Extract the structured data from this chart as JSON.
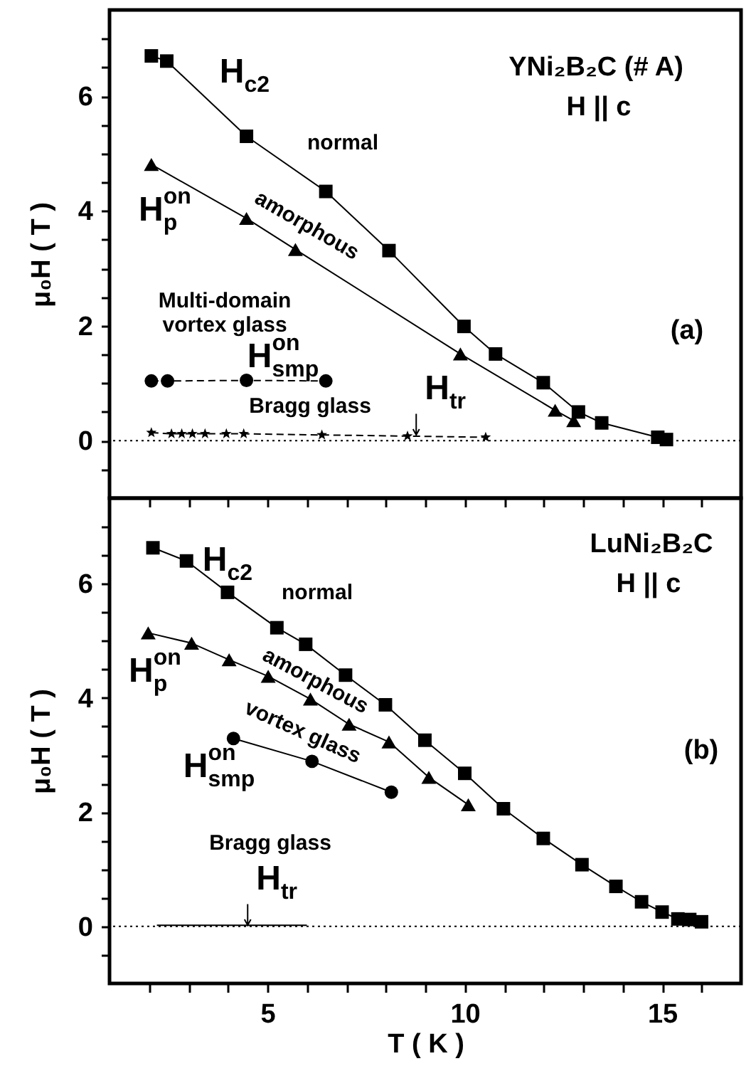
{
  "chart_data": [
    {
      "type": "line",
      "xlim": [
        1,
        17
      ],
      "ylim": [
        -1,
        7.5
      ],
      "xticks": [
        {
          "value": 2,
          "label": null
        },
        {
          "value": 3,
          "label": null
        },
        {
          "value": 4,
          "label": null
        },
        5,
        {
          "value": 6,
          "label": null
        },
        {
          "value": 7,
          "label": null
        },
        {
          "value": 8,
          "label": null
        },
        {
          "value": 9,
          "label": null
        },
        10,
        {
          "value": 11,
          "label": null
        },
        {
          "value": 12,
          "label": null
        },
        {
          "value": 13,
          "label": null
        },
        {
          "value": 14,
          "label": null
        },
        15,
        {
          "value": 16,
          "label": null
        }
      ],
      "yticks": [
        {
          "value": -0.5,
          "label": null
        },
        0,
        {
          "value": 0.5,
          "label": null
        },
        {
          "value": 1,
          "label": null
        },
        {
          "value": 1.5,
          "label": null
        },
        2,
        {
          "value": 2.5,
          "label": null
        },
        {
          "value": 3,
          "label": null
        },
        {
          "value": 3.5,
          "label": null
        },
        4,
        {
          "value": 4.5,
          "label": null
        },
        {
          "value": 5,
          "label": null
        },
        {
          "value": 5.5,
          "label": null
        },
        6,
        {
          "value": 6.5,
          "label": null
        },
        {
          "value": 7,
          "label": null
        }
      ],
      "ylabel": "μ₀H ( T )",
      "tick_labels": "y",
      "series": [
        {
          "color": "#000000",
          "marker": "square",
          "line_style": "solid",
          "x": [
            2.06,
            2.45,
            4.47,
            6.48,
            8.08,
            9.98,
            10.78,
            11.99,
            12.88,
            13.47,
            14.89,
            15.11
          ],
          "values": [
            6.7,
            6.61,
            5.3,
            4.34,
            3.31,
            1.99,
            1.51,
            1.01,
            0.5,
            0.31,
            0.06,
            0.02
          ]
        },
        {
          "color": "#000000",
          "marker": "triangle",
          "line_style": "solid",
          "x": [
            2.06,
            4.47,
            5.71,
            9.89,
            12.29,
            12.76
          ],
          "values": [
            4.81,
            3.87,
            3.33,
            1.51,
            0.53,
            0.35
          ]
        },
        {
          "color": "#000000",
          "marker": "circle",
          "line_style": "dashed",
          "x": [
            2.06,
            2.47,
            4.47,
            6.48
          ],
          "values": [
            1.04,
            1.04,
            1.05,
            1.04
          ]
        },
        {
          "color": "#000000",
          "marker": "star",
          "line_style": "dashed",
          "x": [
            2.06,
            2.57,
            2.83,
            3.1,
            3.42,
            3.96,
            4.4,
            6.38,
            8.55,
            10.53
          ],
          "values": [
            0.14,
            0.12,
            0.12,
            0.12,
            0.12,
            0.12,
            0.12,
            0.1,
            0.08,
            0.06
          ]
        }
      ],
      "ref_lines": [
        {
          "axis": "y",
          "value": 0,
          "line_style": "dotted",
          "color": "#000000"
        }
      ],
      "annotations": [
        "H$_{c2}$",
        "normal",
        "H$^{on}$$_{p}$",
        "amorphous",
        "Multi-domain\nvortex glass",
        "H$^{on}$$_{smp}$",
        "Bragg glass",
        {
          "text": "H$_{tr}$",
          "x": 8.77,
          "y": 0.1
        },
        "YNi₂B₂C (# A)",
        "H || c",
        "(a)"
      ]
    },
    {
      "type": "line",
      "xlim": [
        1,
        17
      ],
      "ylim": [
        -1,
        7.5
      ],
      "xticks": [
        {
          "value": 2,
          "label": null
        },
        {
          "value": 3,
          "label": null
        },
        {
          "value": 4,
          "label": null
        },
        5,
        {
          "value": 6,
          "label": null
        },
        {
          "value": 7,
          "label": null
        },
        {
          "value": 8,
          "label": null
        },
        {
          "value": 9,
          "label": null
        },
        10,
        {
          "value": 11,
          "label": null
        },
        {
          "value": 12,
          "label": null
        },
        {
          "value": 13,
          "label": null
        },
        {
          "value": 14,
          "label": null
        },
        15,
        {
          "value": 16,
          "label": null
        }
      ],
      "yticks": [
        {
          "value": -0.5,
          "label": null
        },
        0,
        {
          "value": 0.5,
          "label": null
        },
        {
          "value": 1,
          "label": null
        },
        {
          "value": 1.5,
          "label": null
        },
        2,
        {
          "value": 2.5,
          "label": null
        },
        {
          "value": 3,
          "label": null
        },
        {
          "value": 3.5,
          "label": null
        },
        4,
        {
          "value": 4.5,
          "label": null
        },
        {
          "value": 5,
          "label": null
        },
        {
          "value": 5.5,
          "label": null
        },
        6,
        {
          "value": 6.5,
          "label": null
        },
        {
          "value": 7,
          "label": null
        }
      ],
      "xlabel": "T ( K )",
      "ylabel": "μ₀H ( T )",
      "series": [
        {
          "color": "#000000",
          "marker": "square",
          "line_style": "solid",
          "x": [
            2.1,
            2.95,
            3.99,
            5.24,
            5.97,
            6.98,
            7.99,
            8.99,
            10.0,
            10.98,
            11.99,
            12.97,
            13.83,
            14.48,
            15.0,
            15.4,
            15.7,
            16.0
          ],
          "values": [
            6.63,
            6.4,
            5.85,
            5.23,
            4.94,
            4.4,
            3.88,
            3.26,
            2.68,
            2.06,
            1.54,
            1.08,
            0.7,
            0.43,
            0.25,
            0.13,
            0.12,
            0.08
          ]
        },
        {
          "color": "#000000",
          "marker": "triangle",
          "line_style": "solid",
          "x": [
            1.98,
            3.08,
            4.03,
            5.02,
            6.09,
            7.07,
            8.08,
            9.09,
            10.09
          ],
          "values": [
            5.14,
            4.96,
            4.67,
            4.38,
            3.98,
            3.54,
            3.23,
            2.61,
            2.13
          ]
        },
        {
          "color": "#000000",
          "marker": "circle",
          "line_style": "solid",
          "x": [
            4.14,
            6.13,
            8.14
          ],
          "values": [
            3.29,
            2.89,
            2.35
          ]
        },
        {
          "color": "#000000",
          "marker": "none",
          "line_style": "solid",
          "x": [
            2.2,
            6.0
          ],
          "values": [
            0.02,
            0.02
          ]
        }
      ],
      "ref_lines": [
        {
          "axis": "y",
          "value": 0,
          "line_style": "dotted",
          "color": "#000000"
        }
      ],
      "annotations": [
        "H$_{c2}$",
        "normal",
        "H$^{on}$$_{p}$",
        "amorphous",
        "vortex glass",
        "H$^{on}$$_{smp}$",
        "Bragg glass",
        {
          "text": "H$_{tr}$",
          "x": 4.5,
          "y": 0.02
        },
        "LuNi₂B₂C",
        "H || c",
        "(b)"
      ]
    }
  ]
}
